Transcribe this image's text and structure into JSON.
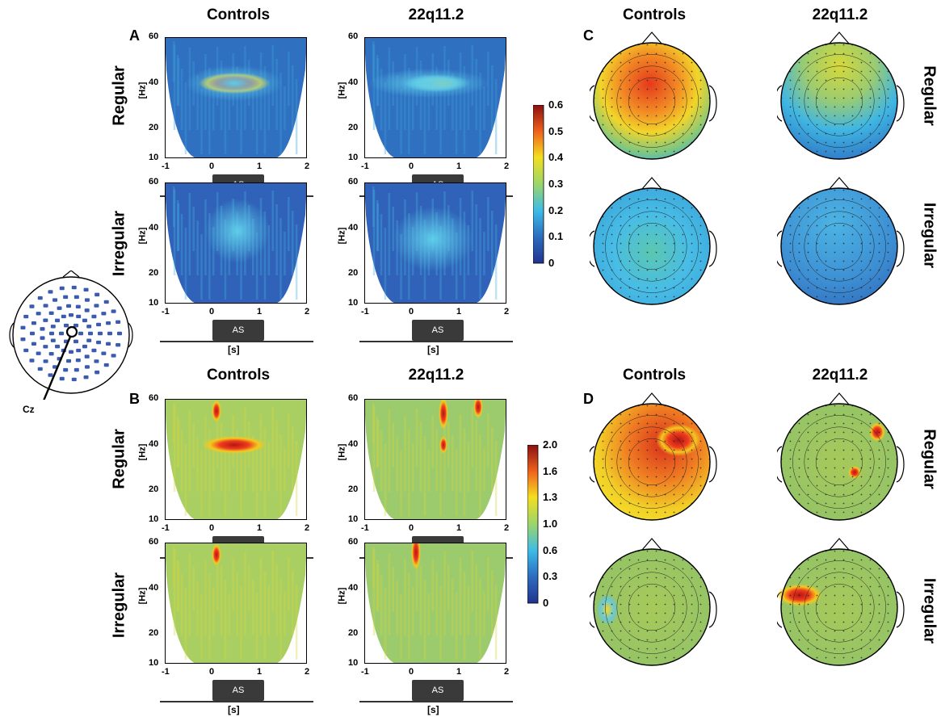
{
  "columns": {
    "controls": "Controls",
    "deletion": "22q11.2"
  },
  "panels": {
    "a": "A",
    "b": "B",
    "c": "C",
    "d": "D"
  },
  "rows": {
    "regular": "Regular",
    "irregular": "Irregular"
  },
  "axis": {
    "hz_unit": "[Hz]",
    "s_unit": "[s]",
    "y_ticks": [
      "60",
      "40",
      "20",
      "10"
    ],
    "x_ticks": [
      "-1",
      "0",
      "1",
      "2"
    ],
    "stimulus": "AS"
  },
  "colorbar_top": {
    "ticks": [
      "0.6",
      "0.5",
      "0.4",
      "0.3",
      "0.2",
      "0.1",
      "0"
    ],
    "min": 0,
    "max": 0.6
  },
  "colorbar_bottom": {
    "ticks": [
      "2.0",
      "1.6",
      "1.3",
      "1.0",
      "0.6",
      "0.3",
      "0"
    ],
    "min": 0,
    "max": 2.0
  },
  "electrode_label": "Cz",
  "colors": {
    "low": "#2a3e9a",
    "mid_low": "#3aa9dc",
    "mid": "#b8d94a",
    "mid_high": "#f7d51e",
    "high": "#e3321e",
    "max": "#8c1010"
  }
}
